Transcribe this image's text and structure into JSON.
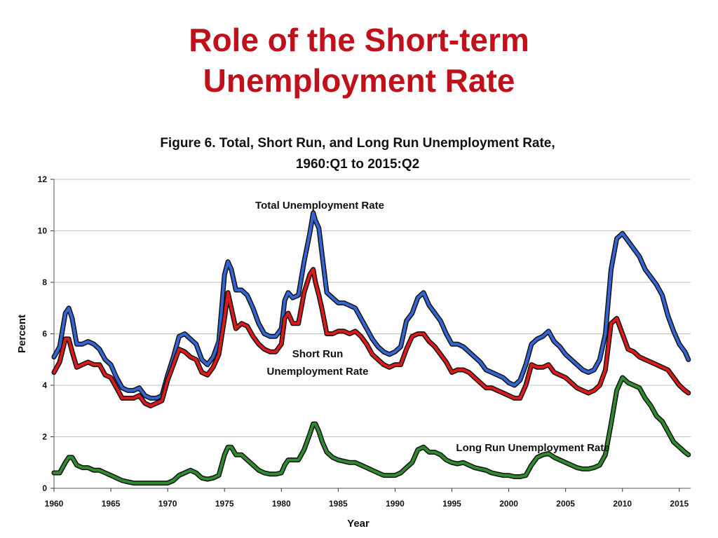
{
  "slide": {
    "title_line1": "Role of the Short-term",
    "title_line2": "Unemployment Rate"
  },
  "colors": {
    "title": "#c0101a",
    "total": "#3465d4",
    "short_run": "#dd1a1a",
    "long_run": "#2e8b2e",
    "outline": "#111111",
    "grid": "#bfbfbf"
  },
  "chart_data": {
    "type": "line",
    "title": "Figure 6. Total, Short Run, and Long Run Unemployment Rate,",
    "subtitle": "1960:Q1 to 2015:Q2",
    "xlabel": "Year",
    "ylabel": "Percent",
    "xlim": [
      1960,
      2016
    ],
    "ylim": [
      0,
      12
    ],
    "x_ticks": [
      "1960",
      "1965",
      "1970",
      "1975",
      "1980",
      "1985",
      "1990",
      "1995",
      "2000",
      "2005",
      "2010",
      "2015"
    ],
    "y_ticks": [
      "0",
      "2",
      "4",
      "6",
      "8",
      "10",
      "12"
    ],
    "grid": "horizontal",
    "annotations": {
      "total": "Total Unemployment Rate",
      "short_run_line1": "Short Run",
      "short_run_line2": "Unemployment Rate",
      "long_run": "Long Run Unemployment Rate"
    },
    "series": [
      {
        "key": "total",
        "x": [
          1960,
          1960.5,
          1961,
          1961.3,
          1961.6,
          1962,
          1962.5,
          1963,
          1963.5,
          1964,
          1964.5,
          1965,
          1965.5,
          1966,
          1966.5,
          1967,
          1967.5,
          1968,
          1968.5,
          1969,
          1969.5,
          1970,
          1970.5,
          1971,
          1971.5,
          1972,
          1972.5,
          1973,
          1973.5,
          1974,
          1974.5,
          1975,
          1975.3,
          1975.6,
          1976,
          1976.5,
          1977,
          1977.5,
          1978,
          1978.5,
          1979,
          1979.5,
          1980,
          1980.3,
          1980.6,
          1981,
          1981.5,
          1982,
          1982.5,
          1982.8,
          1983,
          1983.3,
          1983.6,
          1984,
          1984.5,
          1985,
          1985.5,
          1986,
          1986.5,
          1987,
          1987.5,
          1988,
          1988.5,
          1989,
          1989.5,
          1990,
          1990.5,
          1991,
          1991.5,
          1992,
          1992.5,
          1993,
          1993.5,
          1994,
          1994.5,
          1995,
          1995.5,
          1996,
          1996.5,
          1997,
          1997.5,
          1998,
          1998.5,
          1999,
          1999.5,
          2000,
          2000.5,
          2001,
          2001.5,
          2002,
          2002.5,
          2003,
          2003.5,
          2004,
          2004.5,
          2005,
          2005.5,
          2006,
          2006.5,
          2007,
          2007.5,
          2008,
          2008.5,
          2009,
          2009.5,
          2010,
          2010.5,
          2011,
          2011.5,
          2012,
          2012.5,
          2013,
          2013.5,
          2014,
          2014.5,
          2015,
          2015.5,
          2015.8
        ],
        "values": [
          5.1,
          5.5,
          6.8,
          7.0,
          6.6,
          5.6,
          5.6,
          5.7,
          5.6,
          5.4,
          5.0,
          4.8,
          4.3,
          3.9,
          3.8,
          3.8,
          3.9,
          3.6,
          3.5,
          3.5,
          3.6,
          4.4,
          5.1,
          5.9,
          6.0,
          5.8,
          5.6,
          5.0,
          4.8,
          5.1,
          5.7,
          8.3,
          8.8,
          8.5,
          7.7,
          7.7,
          7.5,
          7.0,
          6.4,
          6.0,
          5.9,
          5.9,
          6.2,
          7.3,
          7.6,
          7.4,
          7.5,
          8.8,
          9.9,
          10.7,
          10.4,
          10.1,
          9.0,
          7.6,
          7.4,
          7.2,
          7.2,
          7.1,
          7.0,
          6.6,
          6.2,
          5.8,
          5.5,
          5.3,
          5.2,
          5.3,
          5.5,
          6.5,
          6.8,
          7.4,
          7.6,
          7.1,
          6.8,
          6.5,
          6.0,
          5.6,
          5.6,
          5.5,
          5.3,
          5.1,
          4.9,
          4.6,
          4.5,
          4.4,
          4.3,
          4.1,
          4.0,
          4.2,
          4.8,
          5.6,
          5.8,
          5.9,
          6.1,
          5.7,
          5.5,
          5.2,
          5.0,
          4.8,
          4.6,
          4.5,
          4.6,
          5.0,
          6.0,
          8.5,
          9.7,
          9.9,
          9.6,
          9.3,
          9.0,
          8.5,
          8.2,
          7.9,
          7.5,
          6.7,
          6.1,
          5.6,
          5.3,
          5.0
        ]
      },
      {
        "key": "short_run",
        "x": [
          1960,
          1960.5,
          1961,
          1961.3,
          1961.6,
          1962,
          1962.5,
          1963,
          1963.5,
          1964,
          1964.5,
          1965,
          1965.5,
          1966,
          1966.5,
          1967,
          1967.5,
          1968,
          1968.5,
          1969,
          1969.5,
          1970,
          1970.5,
          1971,
          1971.5,
          1972,
          1972.5,
          1973,
          1973.5,
          1974,
          1974.5,
          1975,
          1975.3,
          1975.6,
          1976,
          1976.5,
          1977,
          1977.5,
          1978,
          1978.5,
          1979,
          1979.5,
          1980,
          1980.3,
          1980.6,
          1981,
          1981.5,
          1982,
          1982.5,
          1982.8,
          1983,
          1983.3,
          1983.6,
          1984,
          1984.5,
          1985,
          1985.5,
          1986,
          1986.5,
          1987,
          1987.5,
          1988,
          1988.5,
          1989,
          1989.5,
          1990,
          1990.5,
          1991,
          1991.5,
          1992,
          1992.5,
          1993,
          1993.5,
          1994,
          1994.5,
          1995,
          1995.5,
          1996,
          1996.5,
          1997,
          1997.5,
          1998,
          1998.5,
          1999,
          1999.5,
          2000,
          2000.5,
          2001,
          2001.5,
          2002,
          2002.5,
          2003,
          2003.5,
          2004,
          2004.5,
          2005,
          2005.5,
          2006,
          2006.5,
          2007,
          2007.5,
          2008,
          2008.5,
          2009,
          2009.5,
          2010,
          2010.5,
          2011,
          2011.5,
          2012,
          2012.5,
          2013,
          2013.5,
          2014,
          2014.5,
          2015,
          2015.5,
          2015.8
        ],
        "values": [
          4.5,
          4.9,
          5.8,
          5.8,
          5.3,
          4.7,
          4.8,
          4.9,
          4.8,
          4.8,
          4.4,
          4.3,
          3.9,
          3.5,
          3.5,
          3.5,
          3.6,
          3.3,
          3.2,
          3.3,
          3.4,
          4.2,
          4.8,
          5.4,
          5.3,
          5.1,
          5.0,
          4.5,
          4.4,
          4.7,
          5.2,
          6.6,
          7.6,
          7.0,
          6.2,
          6.4,
          6.3,
          5.9,
          5.6,
          5.4,
          5.3,
          5.3,
          5.6,
          6.6,
          6.8,
          6.4,
          6.4,
          7.6,
          8.3,
          8.5,
          8.0,
          7.5,
          6.9,
          6.0,
          6.0,
          6.1,
          6.1,
          6.0,
          6.1,
          5.9,
          5.6,
          5.2,
          5.0,
          4.8,
          4.7,
          4.8,
          4.8,
          5.4,
          5.9,
          6.0,
          6.0,
          5.7,
          5.5,
          5.2,
          4.9,
          4.5,
          4.6,
          4.6,
          4.5,
          4.3,
          4.1,
          3.9,
          3.9,
          3.8,
          3.7,
          3.6,
          3.5,
          3.5,
          4.0,
          4.8,
          4.7,
          4.7,
          4.8,
          4.5,
          4.4,
          4.3,
          4.1,
          3.9,
          3.8,
          3.7,
          3.8,
          4.0,
          4.6,
          6.4,
          6.6,
          6.0,
          5.4,
          5.3,
          5.1,
          5.0,
          4.9,
          4.8,
          4.7,
          4.6,
          4.3,
          4.0,
          3.8,
          3.7
        ]
      },
      {
        "key": "long_run",
        "x": [
          1960,
          1960.5,
          1961,
          1961.3,
          1961.6,
          1962,
          1962.5,
          1963,
          1963.5,
          1964,
          1964.5,
          1965,
          1965.5,
          1966,
          1966.5,
          1967,
          1967.5,
          1968,
          1968.5,
          1969,
          1969.5,
          1970,
          1970.5,
          1971,
          1971.5,
          1972,
          1972.5,
          1973,
          1973.5,
          1974,
          1974.5,
          1975,
          1975.3,
          1975.6,
          1976,
          1976.5,
          1977,
          1977.5,
          1978,
          1978.5,
          1979,
          1979.5,
          1980,
          1980.3,
          1980.6,
          1981,
          1981.5,
          1982,
          1982.5,
          1982.8,
          1983,
          1983.3,
          1983.6,
          1984,
          1984.5,
          1985,
          1985.5,
          1986,
          1986.5,
          1987,
          1987.5,
          1988,
          1988.5,
          1989,
          1989.5,
          1990,
          1990.5,
          1991,
          1991.5,
          1992,
          1992.5,
          1993,
          1993.5,
          1994,
          1994.5,
          1995,
          1995.5,
          1996,
          1996.5,
          1997,
          1997.5,
          1998,
          1998.5,
          1999,
          1999.5,
          2000,
          2000.5,
          2001,
          2001.5,
          2002,
          2002.5,
          2003,
          2003.5,
          2004,
          2004.5,
          2005,
          2005.5,
          2006,
          2006.5,
          2007,
          2007.5,
          2008,
          2008.5,
          2009,
          2009.5,
          2010,
          2010.5,
          2011,
          2011.5,
          2012,
          2012.5,
          2013,
          2013.5,
          2014,
          2014.5,
          2015,
          2015.5,
          2015.8
        ],
        "values": [
          0.6,
          0.6,
          1.0,
          1.2,
          1.2,
          0.9,
          0.8,
          0.8,
          0.7,
          0.7,
          0.6,
          0.5,
          0.4,
          0.3,
          0.25,
          0.2,
          0.2,
          0.2,
          0.2,
          0.2,
          0.2,
          0.2,
          0.3,
          0.5,
          0.6,
          0.7,
          0.6,
          0.4,
          0.35,
          0.4,
          0.5,
          1.3,
          1.6,
          1.6,
          1.3,
          1.3,
          1.1,
          0.9,
          0.7,
          0.6,
          0.55,
          0.55,
          0.6,
          0.9,
          1.1,
          1.1,
          1.1,
          1.5,
          2.1,
          2.5,
          2.5,
          2.2,
          1.8,
          1.4,
          1.2,
          1.1,
          1.05,
          1.0,
          1.0,
          0.9,
          0.8,
          0.7,
          0.6,
          0.5,
          0.5,
          0.5,
          0.6,
          0.8,
          1.0,
          1.5,
          1.6,
          1.4,
          1.4,
          1.3,
          1.1,
          1.0,
          0.95,
          1.0,
          0.9,
          0.8,
          0.75,
          0.7,
          0.6,
          0.55,
          0.5,
          0.5,
          0.45,
          0.45,
          0.5,
          0.9,
          1.2,
          1.3,
          1.35,
          1.2,
          1.1,
          1.0,
          0.9,
          0.8,
          0.75,
          0.75,
          0.8,
          0.9,
          1.3,
          2.5,
          3.8,
          4.3,
          4.1,
          4.0,
          3.9,
          3.5,
          3.2,
          2.8,
          2.6,
          2.2,
          1.8,
          1.6,
          1.4,
          1.3
        ]
      }
    ]
  }
}
